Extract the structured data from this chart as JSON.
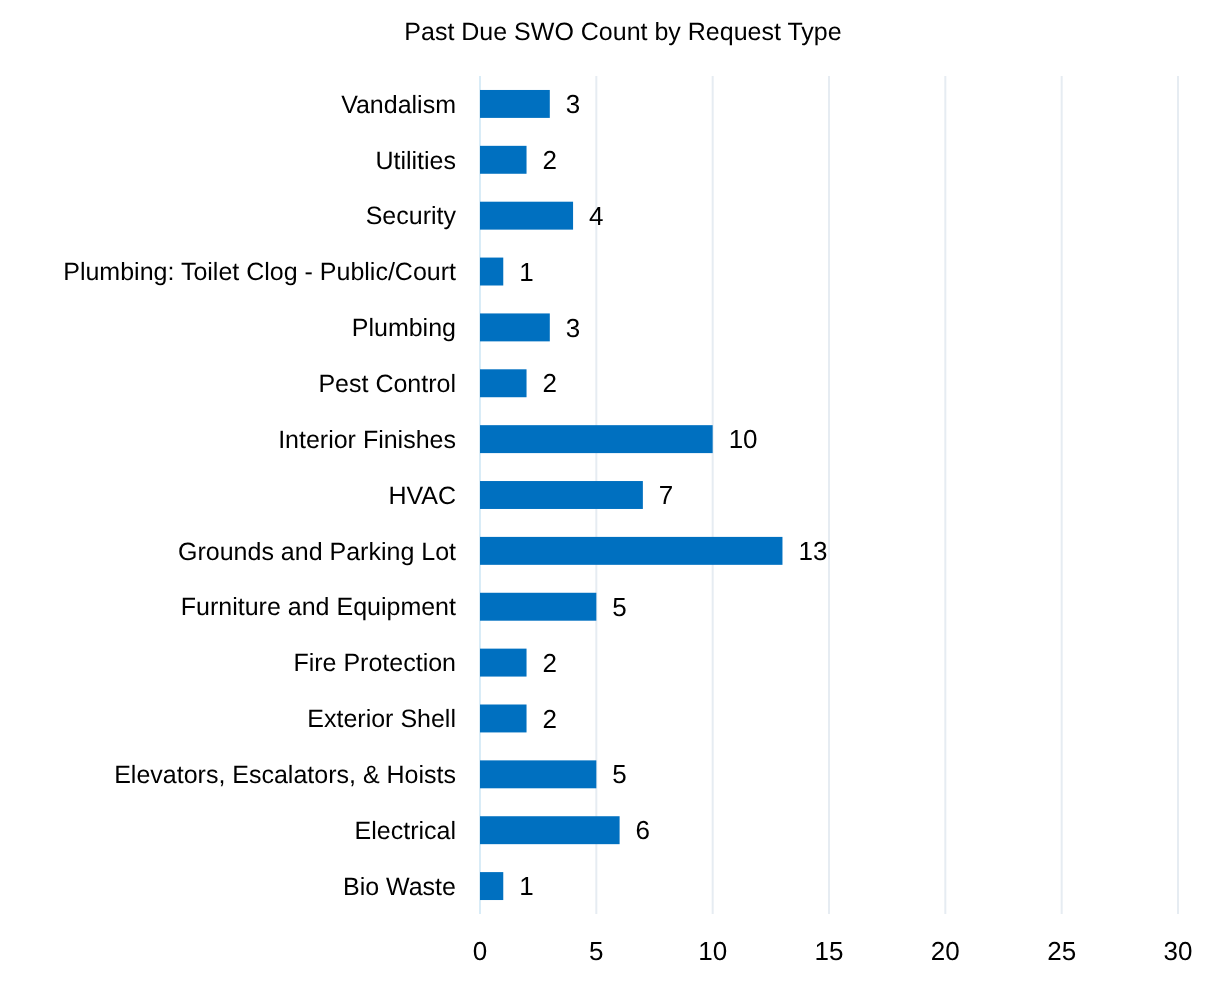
{
  "chart_data": {
    "type": "bar",
    "orientation": "horizontal",
    "title": "Past Due SWO Count by Request Type",
    "categories": [
      "Vandalism",
      "Utilities",
      "Security",
      "Plumbing: Toilet Clog - Public/Court",
      "Plumbing",
      "Pest Control",
      "Interior Finishes",
      "HVAC",
      "Grounds and Parking Lot",
      "Furniture and Equipment",
      "Fire Protection",
      "Exterior Shell",
      "Elevators, Escalators, & Hoists",
      "Electrical",
      "Bio Waste"
    ],
    "values": [
      3,
      2,
      4,
      1,
      3,
      2,
      10,
      7,
      13,
      5,
      2,
      2,
      5,
      6,
      1
    ],
    "color": "#0070c0",
    "xlim": [
      0,
      30
    ],
    "xticks": [
      0,
      5,
      10,
      15,
      20,
      25,
      30
    ],
    "grid": "x",
    "data_labels": true
  }
}
